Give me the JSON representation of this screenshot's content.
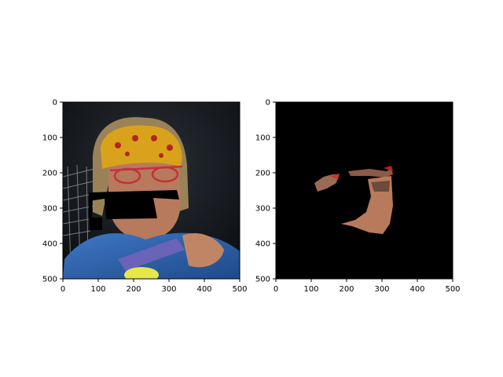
{
  "chart_data": [
    {
      "type": "image",
      "title": "",
      "xlabel": "",
      "ylabel": "",
      "xlim": [
        0,
        500
      ],
      "ylim": [
        500,
        0
      ],
      "xticks": [
        0,
        100,
        200,
        300,
        400,
        500
      ],
      "yticks": [
        0,
        100,
        200,
        300,
        400,
        500
      ],
      "xtick_labels": [
        "0",
        "100",
        "200",
        "300",
        "400",
        "500"
      ],
      "ytick_labels": [
        "0",
        "100",
        "200",
        "300",
        "400",
        "500"
      ],
      "image_content": "photo of tennis player face with black masked regions",
      "colors": {
        "background": "#101418",
        "bandana": "#d9a21b",
        "skin": "#b77a5c",
        "shirt": "#2f5fa8",
        "mask": "#000000"
      }
    },
    {
      "type": "image",
      "title": "",
      "xlabel": "",
      "ylabel": "",
      "xlim": [
        0,
        500
      ],
      "ylim": [
        500,
        0
      ],
      "xticks": [
        0,
        100,
        200,
        300,
        400,
        500
      ],
      "yticks": [
        0,
        100,
        200,
        300,
        400,
        500
      ],
      "xtick_labels": [
        "0",
        "100",
        "200",
        "300",
        "400",
        "500"
      ],
      "ytick_labels": [
        "0",
        "100",
        "200",
        "300",
        "400",
        "500"
      ],
      "image_content": "black background with small segmented face regions",
      "colors": {
        "background": "#000000",
        "skin": "#b77a5c",
        "accent_red": "#c0392b"
      }
    }
  ]
}
